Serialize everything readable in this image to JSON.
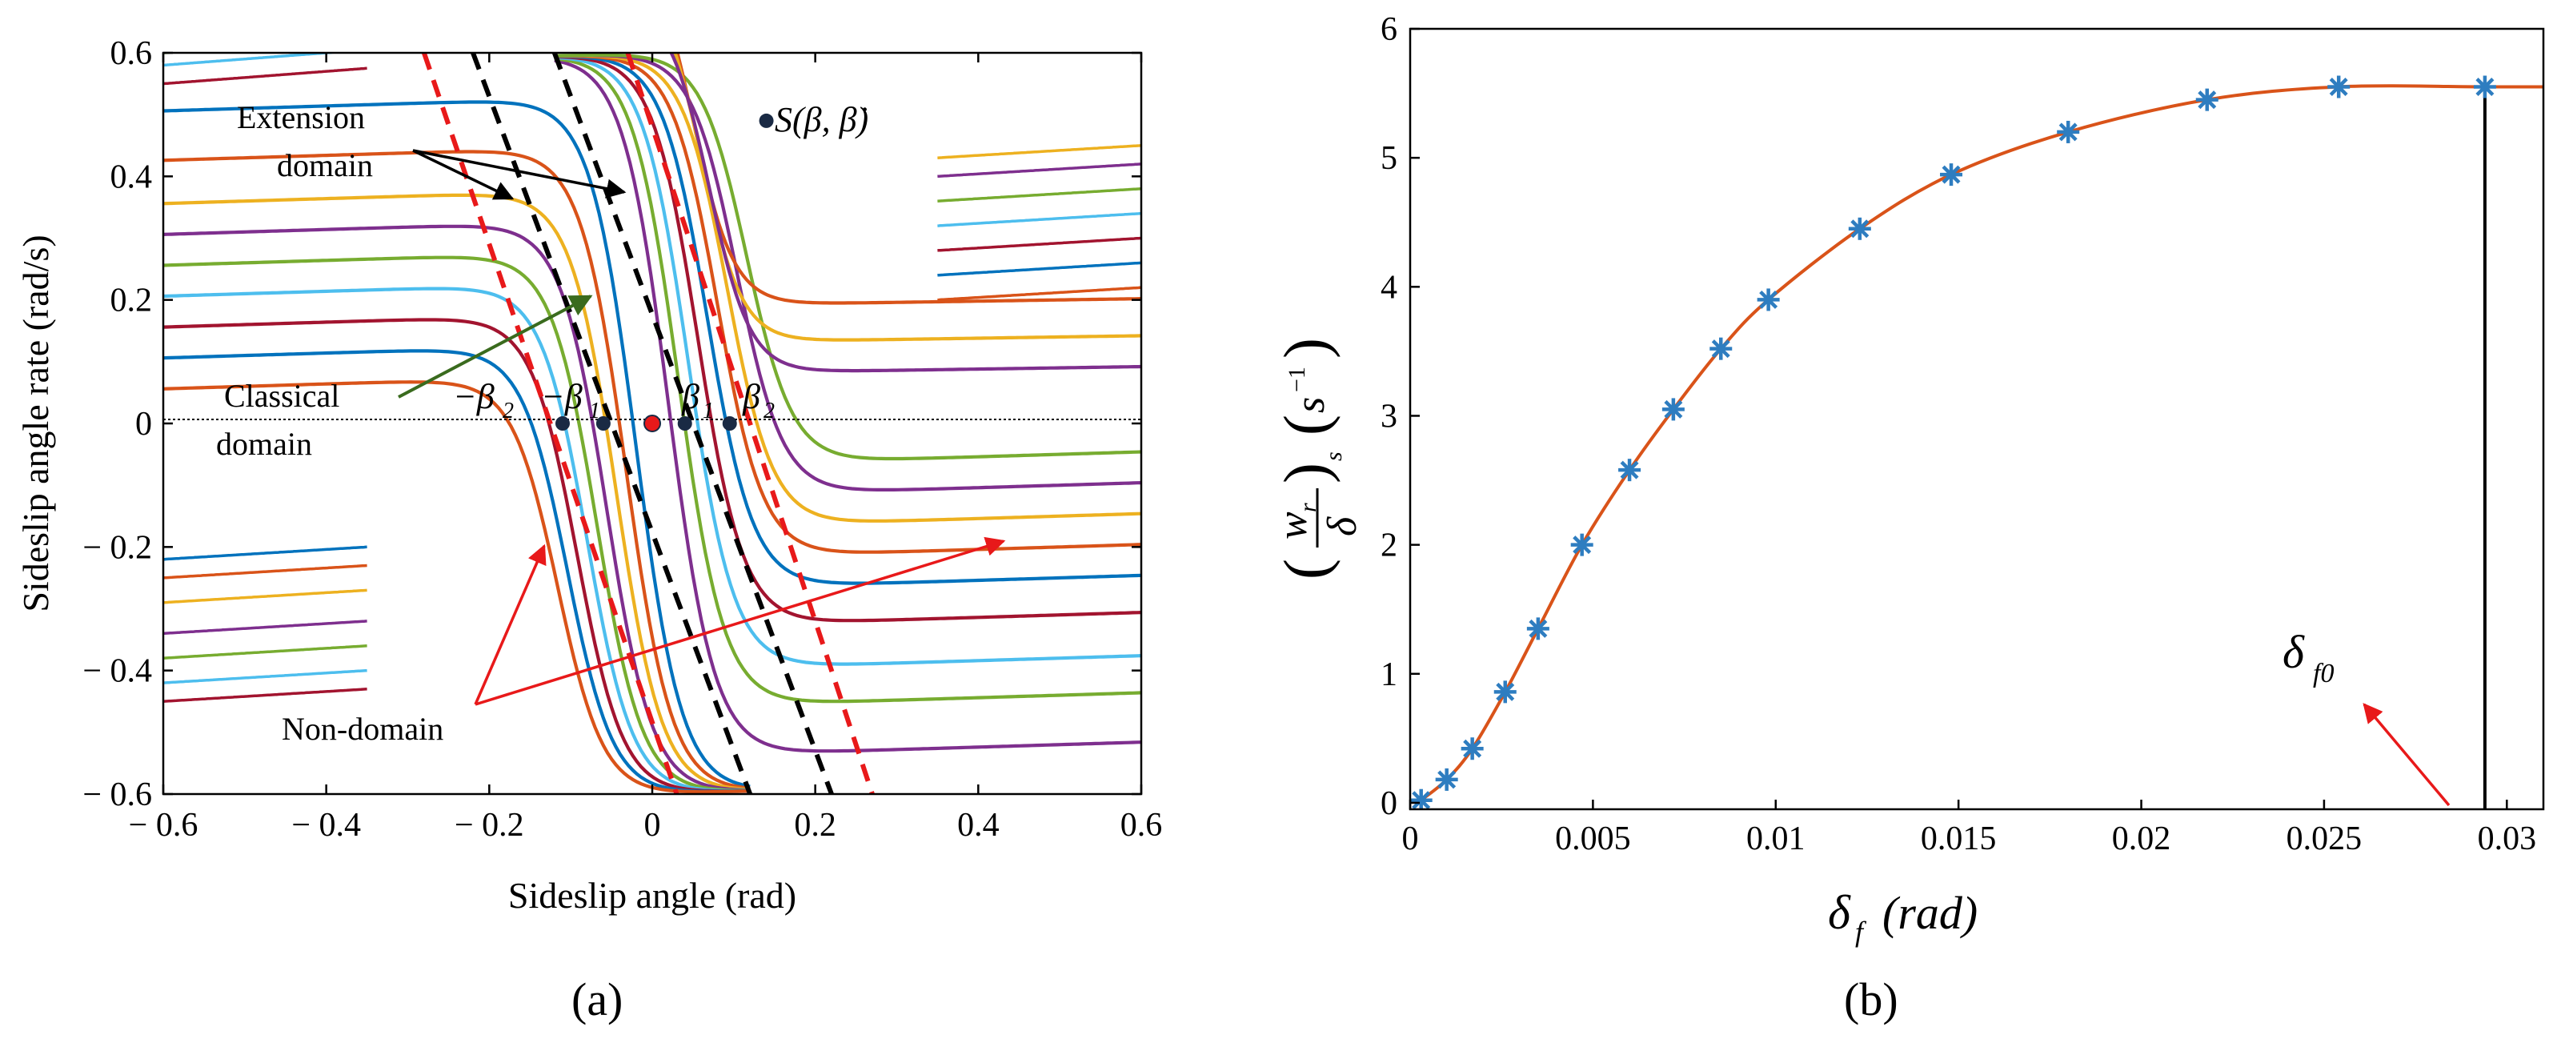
{
  "panel_labels": {
    "a": "(a)",
    "b": "(b)"
  },
  "chart_data": [
    {
      "id": "a",
      "type": "line",
      "title": "",
      "xlabel": "Sideslip angle (rad)",
      "ylabel": "Sideslip angle rate (rad/s)",
      "xlim": [
        -0.6,
        0.6
      ],
      "ylim": [
        -0.6,
        0.6
      ],
      "xticks": [
        -0.6,
        -0.4,
        -0.2,
        0,
        0.2,
        0.4,
        0.6
      ],
      "xtick_labels": [
        "− 0.6",
        "− 0.4",
        "− 0.2",
        "0",
        "0.2",
        "0.4",
        "0.6"
      ],
      "yticks": [
        -0.6,
        -0.4,
        -0.2,
        0,
        0.2,
        0.4,
        0.6
      ],
      "ytick_labels": [
        "− 0.6",
        "− 0.4",
        "− 0.2",
        "0",
        "0.2",
        "0.4",
        "0.6"
      ],
      "grid": false,
      "legend_point": {
        "label": "S(β, β̇)",
        "x": 0.14,
        "y": 0.49
      },
      "equilibrium_points": [
        {
          "label": "−β2",
          "x": -0.11,
          "y": 0
        },
        {
          "label": "−β1",
          "x": -0.06,
          "y": 0
        },
        {
          "label": "",
          "x": 0,
          "y": 0
        },
        {
          "label": "β1",
          "x": 0.04,
          "y": 0
        },
        {
          "label": "β2",
          "x": 0.095,
          "y": 0
        }
      ],
      "boundary_lines": [
        {
          "name": "classical domain boundary (left)",
          "color": "#e8191a",
          "style": "dashed",
          "x": [
            -0.28,
            0.03
          ],
          "y": [
            0.6,
            -0.6
          ]
        },
        {
          "name": "classical domain boundary (right)",
          "color": "#e8191a",
          "style": "dashed",
          "x": [
            -0.03,
            0.27
          ],
          "y": [
            0.6,
            -0.6
          ]
        },
        {
          "name": "extension domain boundary (left)",
          "color": "#000000",
          "style": "dashed",
          "x": [
            -0.22,
            0.12
          ],
          "y": [
            0.6,
            -0.6
          ]
        },
        {
          "name": "extension domain boundary (right)",
          "color": "#000000",
          "style": "dashed",
          "x": [
            -0.12,
            0.22
          ],
          "y": [
            0.6,
            -0.6
          ]
        }
      ],
      "trajectory_colors": [
        "#0072bd",
        "#d95319",
        "#edb120",
        "#7e2f8e",
        "#77ac30",
        "#4dbeee",
        "#a2142f"
      ],
      "trajectories_upper_left_levels": [
        0.53,
        0.45,
        0.38,
        0.33,
        0.28,
        0.23,
        0.18,
        0.13,
        0.08
      ],
      "trajectories_lower_right_levels": [
        -0.54,
        -0.46,
        -0.4,
        -0.33,
        -0.27,
        -0.22,
        -0.17,
        -0.12,
        -0.07
      ],
      "annotations": [
        {
          "text": "Extension",
          "anchor": "upper-left"
        },
        {
          "text": "domain",
          "anchor": "upper-left"
        },
        {
          "text": "Classical",
          "anchor": "middle-left"
        },
        {
          "text": "domain",
          "anchor": "middle-left"
        },
        {
          "text": "Non-domain",
          "anchor": "lower-left"
        }
      ],
      "symbol_labels": {
        "neg_beta2": "−β",
        "neg_beta2_sub": "2",
        "neg_beta1": "−β",
        "neg_beta1_sub": "1",
        "beta1": "β",
        "beta1_sub": "1",
        "beta2": "β",
        "beta2_sub": "2",
        "S_label": "S(β, β̇)"
      }
    },
    {
      "id": "b",
      "type": "line",
      "title": "",
      "xlabel": "δf (rad)",
      "xlabel_parts": {
        "main": "δ",
        "sub": "f",
        "paren": "(rad)"
      },
      "ylabel": "(wr/δ)s (s⁻¹)",
      "ylabel_parts": {
        "num": "w",
        "num_sub": "r",
        "den": "δ",
        "outer_sub": "s",
        "unit": "s",
        "unit_sup": "−1"
      },
      "xlim": [
        0,
        0.031
      ],
      "ylim": [
        -0.05,
        6
      ],
      "xticks": [
        0,
        0.005,
        0.01,
        0.015,
        0.02,
        0.025,
        0.03
      ],
      "xtick_labels": [
        "0",
        "0.005",
        "0.01",
        "0.015",
        "0.02",
        "0.025",
        "0.03"
      ],
      "yticks": [
        0,
        1,
        2,
        3,
        4,
        5,
        6
      ],
      "ytick_labels": [
        "0",
        "1",
        "2",
        "3",
        "4",
        "5",
        "6"
      ],
      "grid": false,
      "series": [
        {
          "name": "fit",
          "color": "#d95319",
          "marker": "none",
          "x": [
            0.0003,
            0.001,
            0.0017,
            0.0026,
            0.0035,
            0.0047,
            0.006,
            0.0072,
            0.0085,
            0.0098,
            0.0123,
            0.0148,
            0.018,
            0.0218,
            0.0254,
            0.0294,
            0.031
          ],
          "y": [
            0.02,
            0.18,
            0.42,
            0.86,
            1.35,
            2.0,
            2.58,
            3.05,
            3.52,
            3.9,
            4.45,
            4.87,
            5.2,
            5.45,
            5.55,
            5.55,
            5.55
          ]
        },
        {
          "name": "samples",
          "color": "#2e7dc0",
          "marker": "*",
          "x": [
            0.0003,
            0.001,
            0.0017,
            0.0026,
            0.0035,
            0.0047,
            0.006,
            0.0072,
            0.0085,
            0.0098,
            0.0123,
            0.0148,
            0.018,
            0.0218,
            0.0254,
            0.0294
          ],
          "y": [
            0.02,
            0.18,
            0.42,
            0.86,
            1.35,
            2.0,
            2.58,
            3.05,
            3.52,
            3.9,
            4.45,
            4.87,
            5.2,
            5.45,
            5.55,
            5.55
          ]
        }
      ],
      "vertical_line": {
        "x": 0.0294,
        "color": "#000000"
      },
      "annotations": [
        {
          "text": "δf0",
          "main": "δ",
          "sub": "f0",
          "arrow_color": "#e8191a"
        }
      ]
    }
  ]
}
